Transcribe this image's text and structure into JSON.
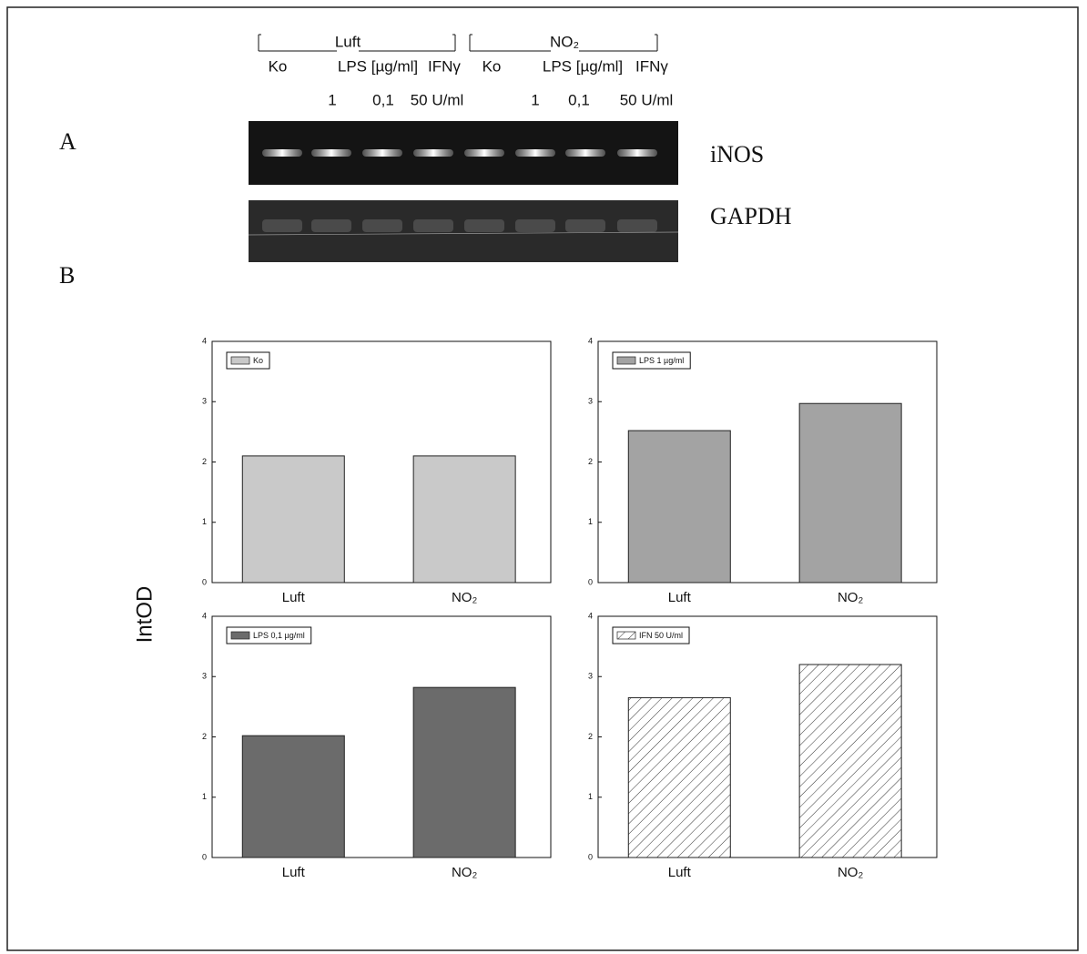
{
  "panels": [
    "A",
    "B"
  ],
  "gel": {
    "groups": [
      "Luft",
      "NO₂"
    ],
    "lanes": [
      "Ko",
      "LPS [µg/ml]",
      "IFNγ",
      "Ko",
      "LPS [µg/ml]",
      "IFNγ"
    ],
    "doses": [
      "1",
      "0,1",
      "50 U/ml",
      "1",
      "0,1",
      "50 U/ml"
    ],
    "rows": [
      "iNOS",
      "GAPDH"
    ]
  },
  "y_axis_label": "IntOD",
  "chart_data": [
    {
      "type": "bar",
      "categories": [
        "Luft",
        "NO₂"
      ],
      "series": [
        {
          "name": "Ko",
          "color": "#c9c9c9",
          "values": [
            2.1,
            2.1
          ]
        }
      ],
      "ylim": [
        0,
        4
      ],
      "yticks": [
        0,
        1,
        2,
        3,
        4
      ]
    },
    {
      "type": "bar",
      "categories": [
        "Luft",
        "NO₂"
      ],
      "series": [
        {
          "name": "LPS 1 µg/ml",
          "color": "#a3a3a3",
          "values": [
            2.52,
            2.97
          ]
        }
      ],
      "ylim": [
        0,
        4
      ],
      "yticks": [
        0,
        1,
        2,
        3,
        4
      ]
    },
    {
      "type": "bar",
      "categories": [
        "Luft",
        "NO₂"
      ],
      "series": [
        {
          "name": "LPS 0,1 µg/ml",
          "color": "#6b6b6b",
          "values": [
            2.02,
            2.82
          ]
        }
      ],
      "ylim": [
        0,
        4
      ],
      "yticks": [
        0,
        1,
        2,
        3,
        4
      ]
    },
    {
      "type": "bar",
      "categories": [
        "Luft",
        "NO₂"
      ],
      "series": [
        {
          "name": "IFN 50 U/ml",
          "color": "#ffffff",
          "values": [
            2.65,
            3.2
          ]
        }
      ],
      "hatch": true,
      "ylim": [
        0,
        4
      ],
      "yticks": [
        0,
        1,
        2,
        3,
        4
      ]
    }
  ]
}
